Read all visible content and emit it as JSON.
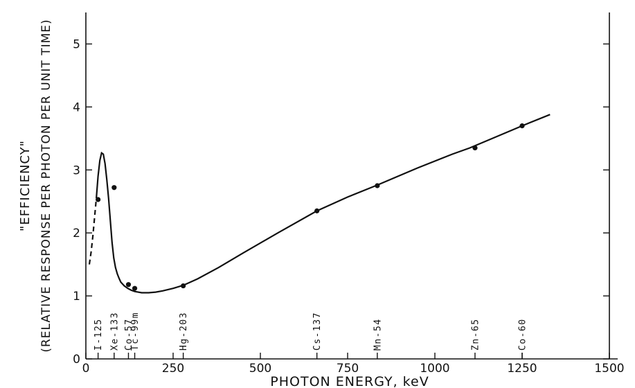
{
  "chart_data": {
    "type": "line",
    "title": "",
    "xlabel": "PHOTON ENERGY, keV",
    "ylabel_line1": "\"EFFICIENCY\"",
    "ylabel_line2": "(RELATIVE RESPONSE PER PHOTON PER UNIT TIME)",
    "xlim": [
      0,
      1500
    ],
    "ylim": [
      0,
      5.5
    ],
    "x_ticks": [
      0,
      250,
      500,
      750,
      1000,
      1250,
      1500
    ],
    "x_tick_labels": [
      "0",
      "250",
      "500",
      "750",
      "1000",
      "1250",
      "1500"
    ],
    "y_ticks": [
      0,
      1,
      2,
      3,
      4,
      5
    ],
    "y_tick_labels": [
      "0",
      "1",
      "2",
      "3",
      "4",
      "5"
    ],
    "grid": false,
    "dashed_segment": {
      "x": [
        10,
        15,
        20,
        25,
        30
      ],
      "y": [
        1.5,
        1.7,
        1.95,
        2.25,
        2.55
      ]
    },
    "curve": {
      "x": [
        30,
        35,
        40,
        45,
        50,
        55,
        60,
        65,
        70,
        75,
        80,
        85,
        90,
        95,
        100,
        110,
        120,
        130,
        140,
        160,
        180,
        200,
        220,
        250,
        280,
        320,
        380,
        450,
        550,
        662,
        750,
        835,
        950,
        1050,
        1100,
        1173,
        1250,
        1330
      ],
      "y": [
        2.55,
        2.9,
        3.15,
        3.27,
        3.25,
        3.1,
        2.85,
        2.55,
        2.2,
        1.85,
        1.6,
        1.45,
        1.35,
        1.28,
        1.22,
        1.16,
        1.12,
        1.09,
        1.07,
        1.05,
        1.05,
        1.06,
        1.08,
        1.12,
        1.17,
        1.27,
        1.45,
        1.68,
        2.0,
        2.35,
        2.57,
        2.76,
        3.03,
        3.25,
        3.35,
        3.52,
        3.7,
        3.88
      ]
    },
    "points": [
      {
        "label": "I-125",
        "x": 35,
        "y": 2.53
      },
      {
        "label": "Xe-133",
        "x": 81,
        "y": 2.72
      },
      {
        "label": "Co-57",
        "x": 122,
        "y": 1.18
      },
      {
        "label": "Tc-99m",
        "x": 140,
        "y": 1.12
      },
      {
        "label": "Hg-203",
        "x": 279,
        "y": 1.16
      },
      {
        "label": "Cs-137",
        "x": 662,
        "y": 2.35
      },
      {
        "label": "Mn-54",
        "x": 835,
        "y": 2.75
      },
      {
        "label": "Zn-65",
        "x": 1115,
        "y": 3.35
      },
      {
        "label": "Co-60",
        "x": 1250,
        "y": 3.7
      }
    ]
  }
}
